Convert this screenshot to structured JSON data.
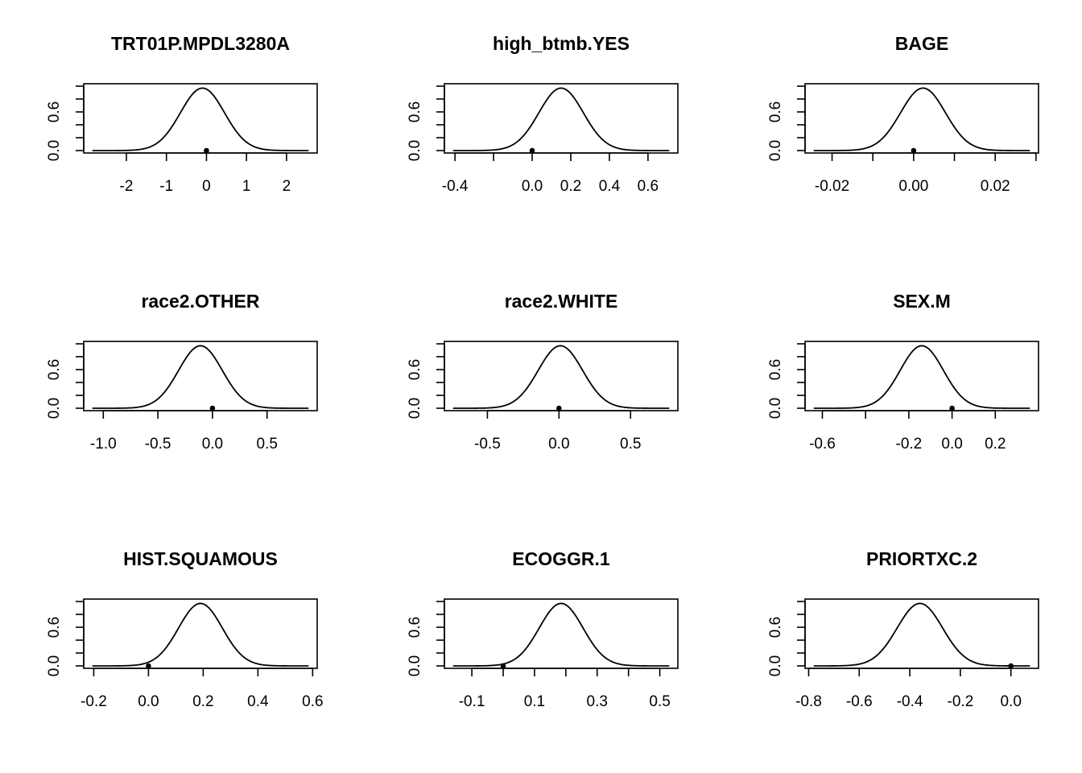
{
  "chart_data": [
    {
      "type": "line",
      "title": "TRT01P.MPDL3280A",
      "xlim": [
        -2.85,
        2.55
      ],
      "ylim": [
        0,
        1
      ],
      "x_ticks": [
        {
          "value": -2,
          "label": "-2"
        },
        {
          "value": -1,
          "label": "-1"
        },
        {
          "value": 0,
          "label": "0"
        },
        {
          "value": 1,
          "label": "1"
        },
        {
          "value": 2,
          "label": "2"
        }
      ],
      "y_ticks": [
        {
          "value": 0.0,
          "label": "0.0"
        },
        {
          "value": 0.6,
          "label": "0.6"
        }
      ],
      "y_minor_ticks": [
        0.2,
        0.4,
        0.8,
        1.0
      ],
      "curve": {
        "shape": "gaussian",
        "peak_x": -0.1,
        "sd": 0.55,
        "peak_y": 0.97
      },
      "point": {
        "x": 0.0,
        "y": 0.0
      }
    },
    {
      "type": "line",
      "title": "high_btmb.YES",
      "xlim": [
        -0.41,
        0.71
      ],
      "ylim": [
        0,
        1
      ],
      "x_ticks": [
        {
          "value": -0.4,
          "label": "-0.4"
        },
        {
          "value": -0.2,
          "label": ""
        },
        {
          "value": 0.0,
          "label": "0.0"
        },
        {
          "value": 0.2,
          "label": "0.2"
        },
        {
          "value": 0.4,
          "label": "0.4"
        },
        {
          "value": 0.6,
          "label": "0.6"
        }
      ],
      "y_ticks": [
        {
          "value": 0.0,
          "label": "0.0"
        },
        {
          "value": 0.6,
          "label": "0.6"
        }
      ],
      "y_minor_ticks": [
        0.2,
        0.4,
        0.8,
        1.0
      ],
      "curve": {
        "shape": "gaussian",
        "peak_x": 0.15,
        "sd": 0.115,
        "peak_y": 0.97
      },
      "point": {
        "x": 0.0,
        "y": 0.0
      }
    },
    {
      "type": "line",
      "title": "BAGE",
      "xlim": [
        -0.0245,
        0.0285
      ],
      "ylim": [
        0,
        1
      ],
      "x_ticks": [
        {
          "value": -0.02,
          "label": "-0.02"
        },
        {
          "value": -0.01,
          "label": ""
        },
        {
          "value": 0.0,
          "label": "0.00"
        },
        {
          "value": 0.01,
          "label": ""
        },
        {
          "value": 0.02,
          "label": "0.02"
        },
        {
          "value": 0.03,
          "label": ""
        }
      ],
      "y_ticks": [
        {
          "value": 0.0,
          "label": "0.0"
        },
        {
          "value": 0.6,
          "label": "0.6"
        }
      ],
      "y_minor_ticks": [
        0.2,
        0.4,
        0.8,
        1.0
      ],
      "curve": {
        "shape": "gaussian",
        "peak_x": 0.0023,
        "sd": 0.0055,
        "peak_y": 0.97
      },
      "point": {
        "x": 0.0,
        "y": 0.0
      }
    },
    {
      "type": "line",
      "title": "race2.OTHER",
      "xlim": [
        -1.1,
        0.88
      ],
      "ylim": [
        0,
        1
      ],
      "x_ticks": [
        {
          "value": -1.0,
          "label": "-1.0"
        },
        {
          "value": -0.5,
          "label": "-0.5"
        },
        {
          "value": 0.0,
          "label": "0.0"
        },
        {
          "value": 0.5,
          "label": "0.5"
        }
      ],
      "y_ticks": [
        {
          "value": 0.0,
          "label": "0.0"
        },
        {
          "value": 0.6,
          "label": "0.6"
        }
      ],
      "y_minor_ticks": [
        0.2,
        0.4,
        0.8,
        1.0
      ],
      "curve": {
        "shape": "gaussian",
        "peak_x": -0.11,
        "sd": 0.2,
        "peak_y": 0.97
      },
      "point": {
        "x": 0.0,
        "y": 0.0
      }
    },
    {
      "type": "line",
      "title": "race2.WHITE",
      "xlim": [
        -0.74,
        0.77
      ],
      "ylim": [
        0,
        1
      ],
      "x_ticks": [
        {
          "value": -0.5,
          "label": "-0.5"
        },
        {
          "value": 0.0,
          "label": "0.0"
        },
        {
          "value": 0.5,
          "label": "0.5"
        }
      ],
      "y_ticks": [
        {
          "value": 0.0,
          "label": "0.0"
        },
        {
          "value": 0.6,
          "label": "0.6"
        }
      ],
      "y_minor_ticks": [
        0.2,
        0.4,
        0.8,
        1.0
      ],
      "curve": {
        "shape": "gaussian",
        "peak_x": 0.01,
        "sd": 0.155,
        "peak_y": 0.97
      },
      "point": {
        "x": 0.0,
        "y": 0.0
      }
    },
    {
      "type": "line",
      "title": "SEX.M",
      "xlim": [
        -0.64,
        0.36
      ],
      "ylim": [
        0,
        1
      ],
      "x_ticks": [
        {
          "value": -0.6,
          "label": "-0.6"
        },
        {
          "value": -0.4,
          "label": ""
        },
        {
          "value": -0.2,
          "label": "-0.2"
        },
        {
          "value": 0.0,
          "label": "0.0"
        },
        {
          "value": 0.2,
          "label": "0.2"
        }
      ],
      "y_ticks": [
        {
          "value": 0.0,
          "label": "0.0"
        },
        {
          "value": 0.6,
          "label": "0.6"
        }
      ],
      "y_minor_ticks": [
        0.2,
        0.4,
        0.8,
        1.0
      ],
      "curve": {
        "shape": "gaussian",
        "peak_x": -0.14,
        "sd": 0.1,
        "peak_y": 0.97
      },
      "point": {
        "x": 0.0,
        "y": 0.0
      }
    },
    {
      "type": "line",
      "title": "HIST.SQUAMOUS",
      "xlim": [
        -0.205,
        0.585
      ],
      "ylim": [
        0,
        1
      ],
      "x_ticks": [
        {
          "value": -0.2,
          "label": "-0.2"
        },
        {
          "value": 0.0,
          "label": "0.0"
        },
        {
          "value": 0.2,
          "label": "0.2"
        },
        {
          "value": 0.4,
          "label": "0.4"
        },
        {
          "value": 0.6,
          "label": "0.6"
        }
      ],
      "y_ticks": [
        {
          "value": 0.0,
          "label": "0.0"
        },
        {
          "value": 0.6,
          "label": "0.6"
        }
      ],
      "y_minor_ticks": [
        0.2,
        0.4,
        0.8,
        1.0
      ],
      "curve": {
        "shape": "gaussian",
        "peak_x": 0.19,
        "sd": 0.08,
        "peak_y": 0.97
      },
      "point": {
        "x": 0.0,
        "y": 0.0
      }
    },
    {
      "type": "line",
      "title": "ECOGGR.1",
      "xlim": [
        -0.16,
        0.53
      ],
      "ylim": [
        0,
        1
      ],
      "x_ticks": [
        {
          "value": -0.1,
          "label": "-0.1"
        },
        {
          "value": 0.0,
          "label": ""
        },
        {
          "value": 0.1,
          "label": "0.1"
        },
        {
          "value": 0.2,
          "label": ""
        },
        {
          "value": 0.3,
          "label": "0.3"
        },
        {
          "value": 0.4,
          "label": ""
        },
        {
          "value": 0.5,
          "label": "0.5"
        }
      ],
      "y_ticks": [
        {
          "value": 0.0,
          "label": "0.0"
        },
        {
          "value": 0.6,
          "label": "0.6"
        }
      ],
      "y_minor_ticks": [
        0.2,
        0.4,
        0.8,
        1.0
      ],
      "curve": {
        "shape": "gaussian",
        "peak_x": 0.185,
        "sd": 0.07,
        "peak_y": 0.97
      },
      "point": {
        "x": 0.0,
        "y": 0.0
      }
    },
    {
      "type": "line",
      "title": "PRIORTXC.2",
      "xlim": [
        -0.78,
        0.075
      ],
      "ylim": [
        0,
        1
      ],
      "x_ticks": [
        {
          "value": -0.8,
          "label": "-0.8"
        },
        {
          "value": -0.6,
          "label": "-0.6"
        },
        {
          "value": -0.4,
          "label": "-0.4"
        },
        {
          "value": -0.2,
          "label": "-0.2"
        },
        {
          "value": 0.0,
          "label": "0.0"
        }
      ],
      "y_ticks": [
        {
          "value": 0.0,
          "label": "0.0"
        },
        {
          "value": 0.6,
          "label": "0.6"
        }
      ],
      "y_minor_ticks": [
        0.2,
        0.4,
        0.8,
        1.0
      ],
      "curve": {
        "shape": "gaussian",
        "peak_x": -0.36,
        "sd": 0.09,
        "peak_y": 0.97
      },
      "point": {
        "x": 0.0,
        "y": 0.0
      }
    }
  ]
}
